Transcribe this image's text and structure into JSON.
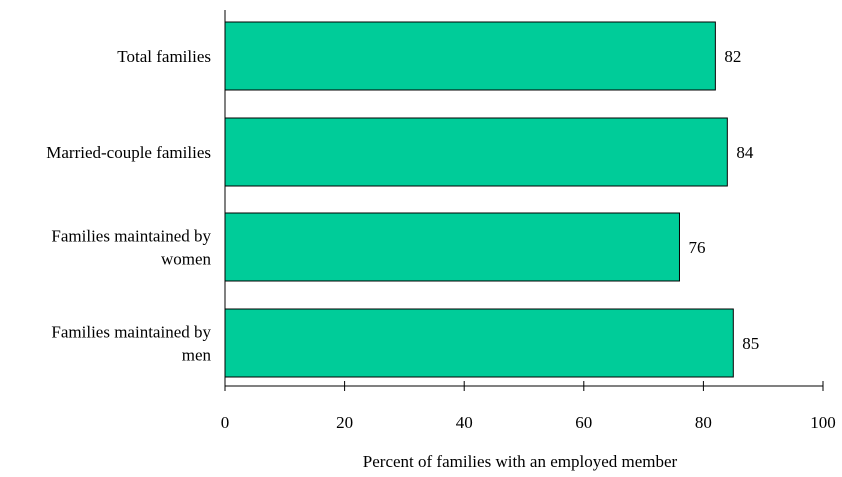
{
  "chart_data": {
    "type": "bar",
    "orientation": "horizontal",
    "title": "",
    "xlabel": "Percent of families with an employed member",
    "ylabel": "",
    "categories": [
      [
        "Total families"
      ],
      [
        "Married-couple families"
      ],
      [
        "Families maintained by",
        "women"
      ],
      [
        "Families maintained by",
        "men"
      ]
    ],
    "values": [
      82,
      84,
      76,
      85
    ],
    "data_labels": [
      "82",
      "84",
      "76",
      "85"
    ],
    "xlim": [
      0,
      100
    ],
    "xticks": [
      0,
      20,
      40,
      60,
      80,
      100
    ],
    "xtick_labels": [
      "0",
      "20",
      "40",
      "60",
      "80",
      "100"
    ],
    "grid": false,
    "legend": "none",
    "colors": {
      "bar_fill": "#00CC99",
      "bar_stroke": "#000000",
      "axis": "#000000"
    }
  }
}
